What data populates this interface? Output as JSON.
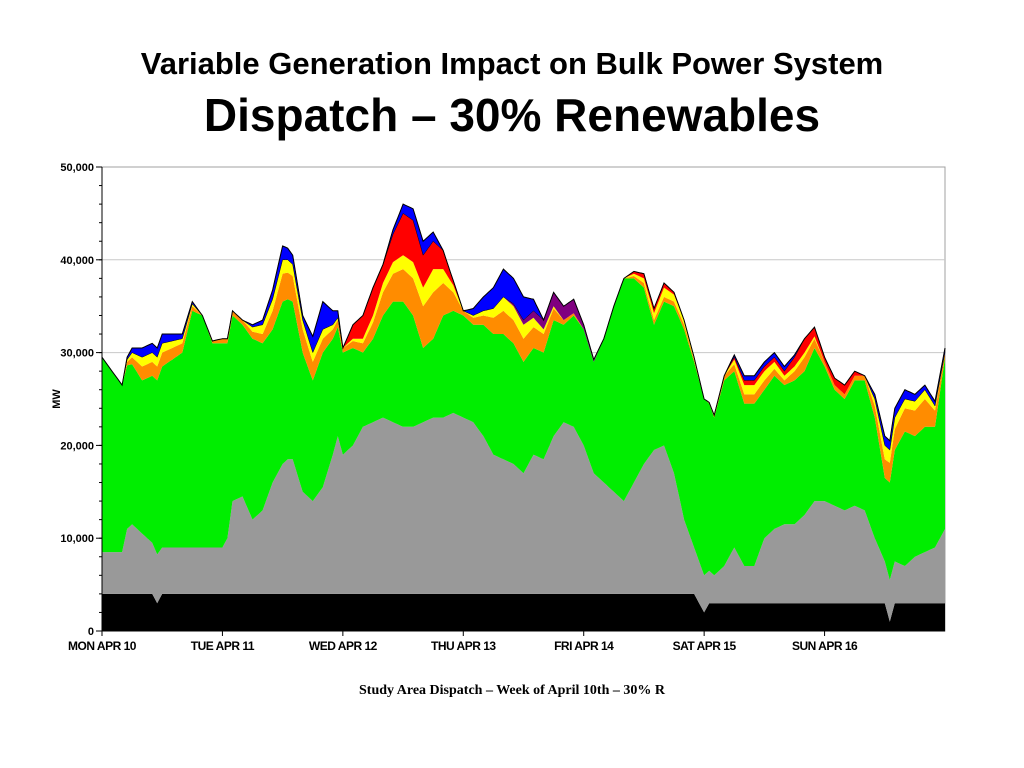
{
  "slide": {
    "title_line1": "Variable Generation Impact on Bulk Power System",
    "title_line2": "Dispatch – 30% Renewables",
    "caption": "Study Area Dispatch – Week of April 10th – 30% R"
  },
  "chart_data": {
    "type": "area",
    "stacked": true,
    "ylabel": "MW",
    "xlabel": "",
    "ylim": [
      0,
      50000
    ],
    "yticks": [
      0,
      10000,
      20000,
      30000,
      40000,
      50000
    ],
    "ytick_labels": [
      "0",
      "10,000",
      "20,000",
      "30,000",
      "40,000",
      "50,000"
    ],
    "xlim": [
      0,
      168
    ],
    "x_units": "hours from Mon Apr 10 00:00",
    "xticks": [
      {
        "x": 0,
        "label": "MON APR 10"
      },
      {
        "x": 24,
        "label": "TUE APR 11"
      },
      {
        "x": 48,
        "label": "WED APR 12"
      },
      {
        "x": 72,
        "label": "THU APR 13"
      },
      {
        "x": 96,
        "label": "FRI APR 14"
      },
      {
        "x": 120,
        "label": "SAT APR 15"
      },
      {
        "x": 144,
        "label": "SUN APR 16"
      }
    ],
    "grid": "horizontal",
    "colors": [
      "#000000",
      "#999999",
      "#00ee00",
      "#ff8c00",
      "#ffff00",
      "#800080",
      "#ff0000",
      "#0000ff"
    ],
    "series": [
      {
        "x": [
          0,
          10,
          11,
          12,
          23,
          24,
          46,
          47,
          48,
          60,
          61,
          62,
          72,
          84,
          85,
          86,
          96,
          108,
          118,
          120,
          121,
          122,
          132,
          140,
          141,
          142,
          156,
          157,
          158,
          159,
          168
        ],
        "values": [
          4000,
          4000,
          3000,
          4000,
          4000,
          4000,
          4000,
          4000,
          4000,
          4000,
          4000,
          4000,
          4000,
          4000,
          4000,
          4000,
          4000,
          4000,
          4000,
          2000,
          3000,
          3000,
          3000,
          3000,
          3000,
          3000,
          3000,
          1000,
          3000,
          3000,
          3000
        ]
      },
      {
        "x": [
          0,
          4,
          5,
          6,
          8,
          10,
          12,
          24,
          25,
          26,
          28,
          30,
          32,
          34,
          36,
          37,
          38,
          40,
          42,
          44,
          46,
          47,
          48,
          50,
          52,
          54,
          56,
          58,
          60,
          62,
          64,
          66,
          68,
          70,
          72,
          74,
          76,
          78,
          80,
          82,
          84,
          86,
          88,
          90,
          92,
          94,
          96,
          98,
          100,
          102,
          104,
          106,
          108,
          110,
          112,
          114,
          116,
          118,
          120,
          122,
          124,
          126,
          128,
          130,
          132,
          134,
          136,
          138,
          140,
          142,
          144,
          146,
          148,
          150,
          152,
          154,
          156,
          158,
          160,
          162,
          164,
          166,
          168
        ],
        "values": [
          4500,
          4500,
          7000,
          7500,
          6500,
          5500,
          5000,
          5000,
          6000,
          10000,
          10500,
          8000,
          9000,
          12000,
          14000,
          14500,
          14500,
          11000,
          10000,
          11500,
          15000,
          17000,
          15000,
          16000,
          18000,
          18500,
          19000,
          18500,
          18000,
          18000,
          18500,
          19000,
          19000,
          19500,
          19000,
          18500,
          17000,
          15000,
          14500,
          14000,
          13000,
          15000,
          14500,
          17000,
          18500,
          18000,
          16000,
          13000,
          12000,
          11000,
          10000,
          12000,
          14000,
          15500,
          16000,
          13000,
          8000,
          5000,
          4000,
          3000,
          4000,
          6000,
          4000,
          4000,
          7000,
          8000,
          8500,
          8500,
          9500,
          11000,
          11000,
          10500,
          10000,
          10500,
          10000,
          7000,
          4500,
          4500,
          4000,
          5000,
          5500,
          6000,
          8000
        ]
      },
      {
        "x": [
          0,
          4,
          8,
          12,
          16,
          18,
          20,
          22,
          24,
          26,
          28,
          30,
          32,
          34,
          36,
          38,
          40,
          42,
          44,
          46,
          48,
          50,
          52,
          54,
          56,
          58,
          60,
          62,
          64,
          66,
          68,
          70,
          72,
          74,
          76,
          78,
          80,
          82,
          84,
          86,
          88,
          90,
          92,
          94,
          96,
          98,
          100,
          102,
          104,
          106,
          108,
          110,
          112,
          114,
          116,
          118,
          120,
          122,
          124,
          126,
          128,
          130,
          132,
          134,
          136,
          138,
          140,
          142,
          144,
          146,
          148,
          150,
          152,
          154,
          156,
          158,
          160,
          162,
          164,
          166,
          168
        ],
        "values": [
          21000,
          18000,
          16500,
          19500,
          21000,
          25500,
          25000,
          22000,
          22000,
          20000,
          18500,
          19500,
          18000,
          16500,
          17500,
          17000,
          15000,
          13000,
          14500,
          12500,
          11000,
          10500,
          8000,
          9000,
          11000,
          13000,
          13500,
          12000,
          8000,
          8500,
          11000,
          11000,
          11000,
          10500,
          12000,
          13000,
          13500,
          13000,
          12000,
          11500,
          11500,
          12500,
          10500,
          12000,
          12500,
          12000,
          15500,
          20000,
          24000,
          22000,
          19000,
          13500,
          15500,
          18000,
          20500,
          20000,
          19000,
          17000,
          20000,
          19000,
          17500,
          17500,
          16000,
          16500,
          15000,
          15500,
          15500,
          16500,
          14500,
          12500,
          12000,
          13500,
          14000,
          13000,
          9000,
          12000,
          14500,
          13000,
          13500,
          13000,
          18500
        ]
      },
      {
        "x": [
          0,
          4,
          8,
          12,
          16,
          20,
          24,
          28,
          32,
          36,
          40,
          44,
          48,
          52,
          56,
          60,
          64,
          66,
          68,
          72,
          76,
          80,
          84,
          88,
          92,
          96,
          100,
          104,
          108,
          112,
          116,
          120,
          124,
          128,
          132,
          136,
          140,
          144,
          148,
          152,
          156,
          160,
          164,
          168
        ],
        "values": [
          0,
          0,
          1500,
          1500,
          1000,
          0,
          500,
          500,
          1000,
          3000,
          2500,
          1500,
          500,
          1000,
          2500,
          3500,
          4500,
          5000,
          3500,
          500,
          1000,
          2500,
          2500,
          2000,
          500,
          0,
          0,
          0,
          500,
          500,
          500,
          0,
          500,
          1000,
          1000,
          500,
          1500,
          500,
          500,
          500,
          2000,
          2500,
          3000,
          500
        ]
      },
      {
        "x": [
          0,
          4,
          8,
          12,
          16,
          20,
          24,
          28,
          32,
          36,
          40,
          44,
          48,
          52,
          56,
          60,
          64,
          66,
          68,
          72,
          76,
          80,
          84,
          88,
          92,
          96,
          100,
          104,
          108,
          112,
          116,
          120,
          124,
          128,
          132,
          136,
          140,
          144,
          148,
          152,
          156,
          160,
          164,
          168
        ],
        "values": [
          0,
          0,
          1000,
          1000,
          500,
          0,
          0,
          0,
          1000,
          1500,
          1000,
          1000,
          0,
          500,
          1000,
          1500,
          2000,
          2500,
          1500,
          0,
          500,
          1500,
          1500,
          500,
          0,
          0,
          0,
          0,
          500,
          1000,
          500,
          0,
          0,
          1000,
          1000,
          500,
          500,
          0,
          0,
          0,
          1500,
          1000,
          1000,
          0
        ]
      },
      {
        "x": [
          0,
          4,
          8,
          12,
          16,
          20,
          24,
          28,
          32,
          36,
          40,
          44,
          48,
          52,
          56,
          60,
          64,
          66,
          68,
          72,
          76,
          80,
          84,
          88,
          90,
          92,
          94,
          96,
          100,
          104,
          108,
          112,
          116,
          120,
          124,
          128,
          132,
          136,
          140,
          144,
          148,
          152,
          156,
          160,
          164,
          168
        ],
        "values": [
          0,
          0,
          0,
          0,
          0,
          0,
          0,
          0,
          0,
          0,
          0,
          0,
          0,
          0,
          0,
          0,
          0,
          0,
          0,
          0,
          0,
          0,
          500,
          1000,
          1500,
          1500,
          1500,
          500,
          0,
          0,
          0,
          0,
          0,
          0,
          0,
          0,
          0,
          0,
          0,
          0,
          0,
          0,
          0,
          0,
          0,
          0
        ]
      },
      {
        "x": [
          0,
          4,
          8,
          12,
          16,
          20,
          24,
          28,
          32,
          36,
          40,
          44,
          48,
          50,
          52,
          54,
          56,
          58,
          60,
          62,
          64,
          66,
          68,
          70,
          72,
          76,
          80,
          84,
          88,
          92,
          96,
          100,
          104,
          108,
          112,
          116,
          120,
          124,
          128,
          132,
          136,
          140,
          144,
          148,
          152,
          156,
          160,
          164,
          168
        ],
        "values": [
          0,
          0,
          0,
          0,
          0,
          0,
          0,
          0,
          0,
          0,
          0,
          0,
          0,
          1500,
          2500,
          3000,
          2000,
          3000,
          4500,
          4500,
          3500,
          3000,
          2000,
          500,
          0,
          0,
          0,
          0,
          0,
          0,
          0,
          0,
          0,
          500,
          500,
          0,
          0,
          0,
          500,
          500,
          500,
          1500,
          500,
          1000,
          0,
          0,
          0,
          0,
          0
        ]
      },
      {
        "x": [
          0,
          4,
          8,
          12,
          16,
          20,
          24,
          28,
          32,
          36,
          40,
          44,
          48,
          52,
          56,
          60,
          64,
          66,
          68,
          72,
          76,
          80,
          84,
          88,
          92,
          96,
          100,
          104,
          108,
          112,
          116,
          120,
          124,
          128,
          132,
          136,
          140,
          144,
          148,
          152,
          156,
          160,
          164,
          168
        ],
        "values": [
          0,
          0,
          1000,
          1000,
          500,
          0,
          0,
          0,
          500,
          1500,
          500,
          3000,
          0,
          0,
          0,
          1000,
          1500,
          1000,
          0,
          0,
          1500,
          3000,
          2500,
          0,
          0,
          0,
          0,
          0,
          0,
          0,
          0,
          0,
          0,
          500,
          500,
          500,
          0,
          0,
          0,
          0,
          1000,
          1000,
          500,
          500
        ]
      }
    ]
  }
}
